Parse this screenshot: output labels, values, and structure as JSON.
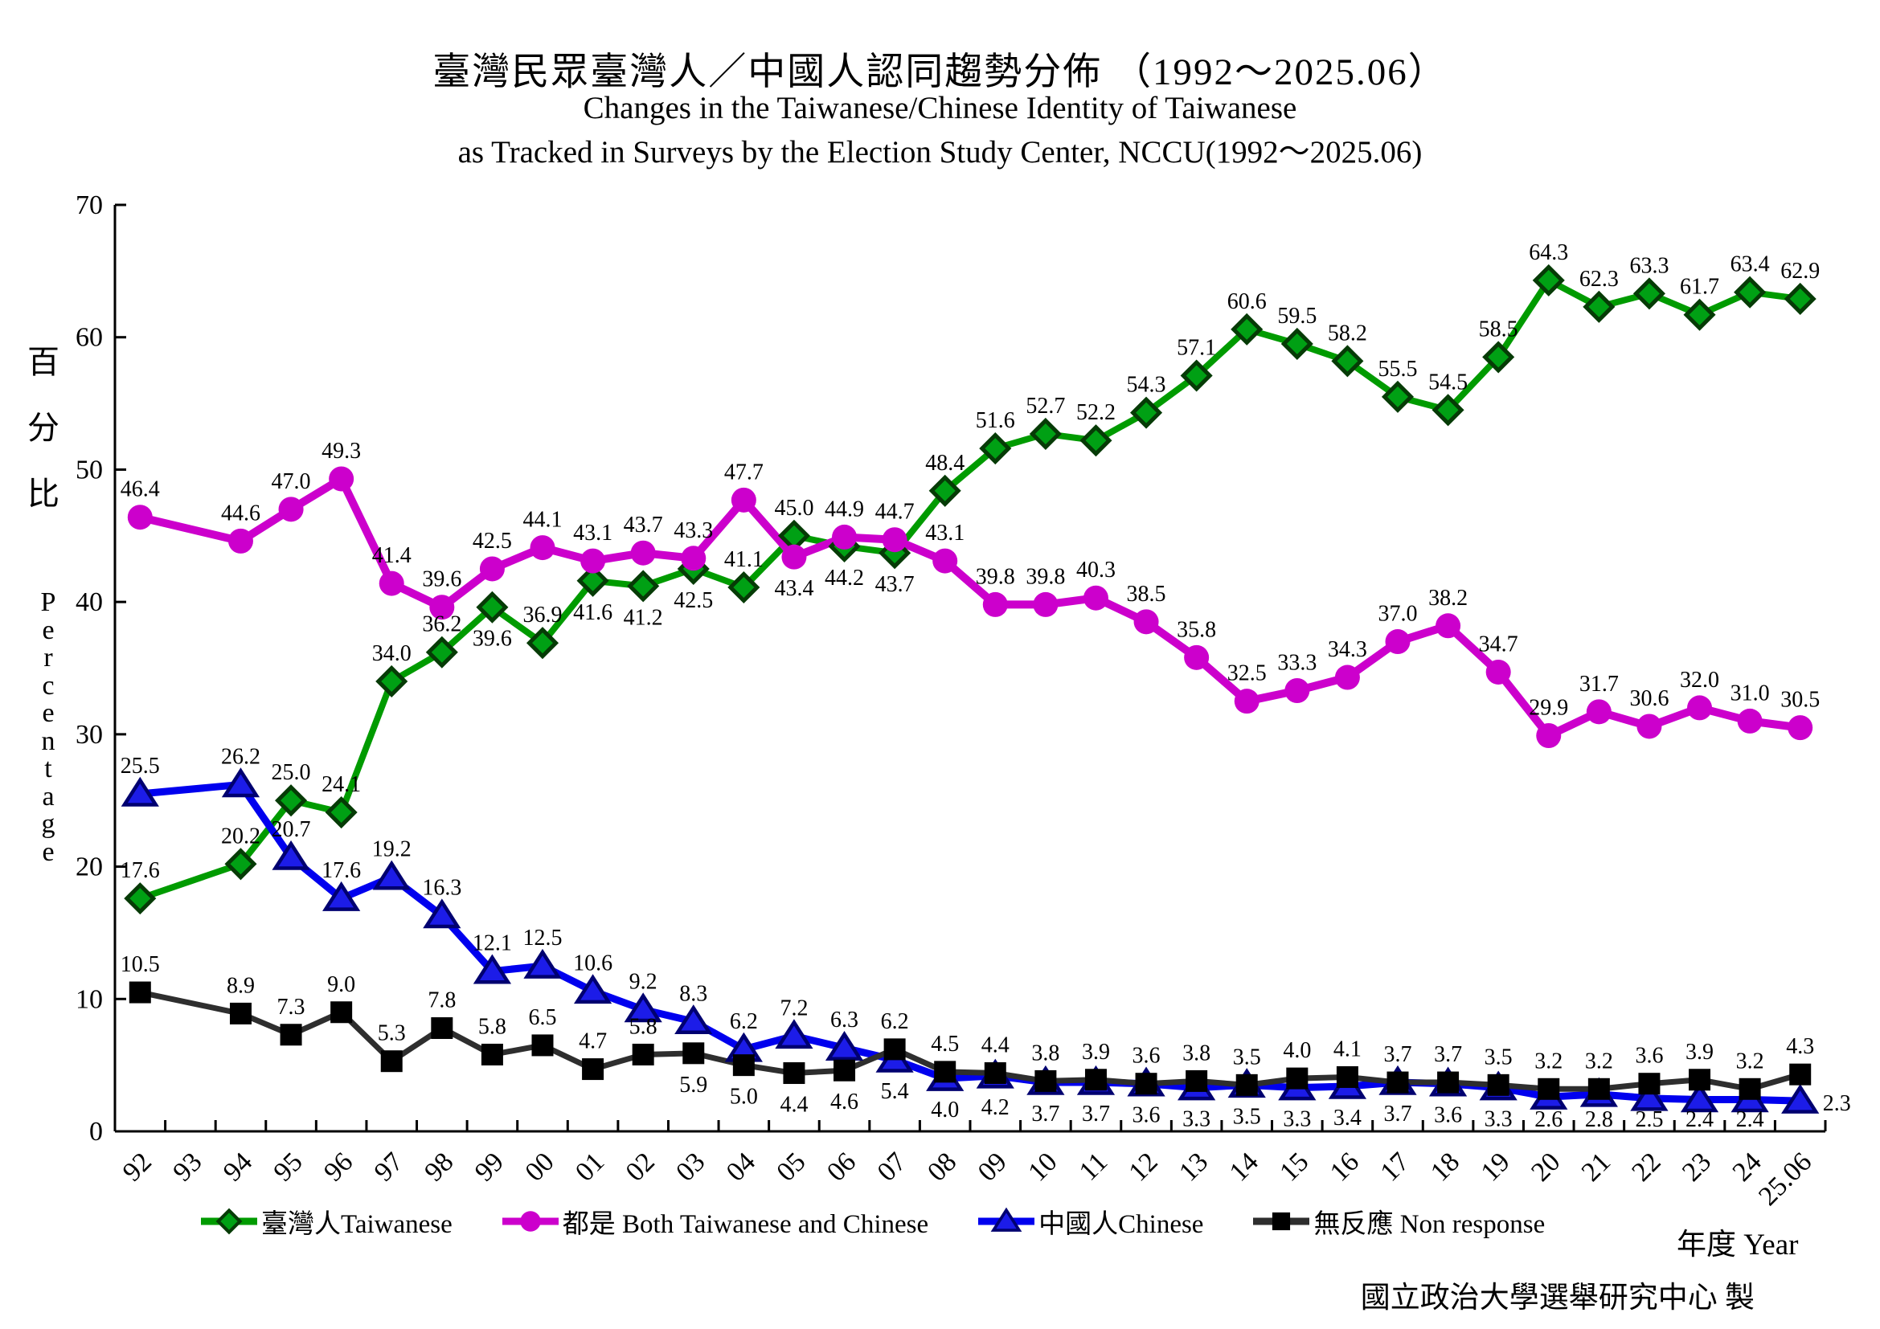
{
  "title_zh": "臺灣民眾臺灣人／中國人認同趨勢分佈 （1992～2025.06）",
  "subtitle_en_line1": "Changes in the Taiwanese/Chinese Identity of Taiwanese",
  "subtitle_en_line2": "as Tracked in Surveys by the Election Study Center, NCCU(1992～2025.06)",
  "y_axis": {
    "label_zh": "百分比",
    "label_en": "Percentage"
  },
  "x_axis_label": "年度 Year",
  "source": "國立政治大學選舉研究中心 製",
  "chart_data": {
    "type": "line",
    "title": "臺灣民眾臺灣人／中國人認同趨勢分佈 （1992～2025.06）",
    "xlabel": "年度 Year",
    "ylabel": "百分比 Percentage",
    "ylim": [
      0,
      70
    ],
    "y_ticks": [
      0,
      10,
      20,
      30,
      40,
      50,
      60,
      70
    ],
    "grid": false,
    "legend_position": "bottom",
    "categories": [
      "92",
      "93",
      "94",
      "95",
      "96",
      "97",
      "98",
      "99",
      "00",
      "01",
      "02",
      "03",
      "04",
      "05",
      "06",
      "07",
      "08",
      "09",
      "10",
      "11",
      "12",
      "13",
      "14",
      "15",
      "16",
      "17",
      "18",
      "19",
      "20",
      "21",
      "22",
      "23",
      "24",
      "25.06"
    ],
    "series": [
      {
        "name": "臺灣人Taiwanese",
        "marker": "diamond",
        "color": "#009B00",
        "marker_fill": "#00A014",
        "marker_border": "#063B06",
        "values": [
          17.6,
          null,
          20.2,
          25.0,
          24.1,
          34.0,
          36.2,
          39.6,
          36.9,
          41.6,
          41.2,
          42.5,
          41.1,
          45.0,
          44.2,
          43.7,
          48.4,
          51.6,
          52.7,
          52.2,
          54.3,
          57.1,
          60.6,
          59.5,
          58.2,
          55.5,
          54.5,
          58.5,
          64.3,
          62.3,
          63.3,
          61.7,
          63.4,
          62.9
        ]
      },
      {
        "name": "都是 Both Taiwanese and Chinese",
        "marker": "circle",
        "color": "#CC00CC",
        "marker_fill": "#CC00CC",
        "marker_border": "#CC00CC",
        "values": [
          46.4,
          null,
          44.6,
          47.0,
          49.3,
          41.4,
          39.6,
          42.5,
          44.1,
          43.1,
          43.7,
          43.3,
          47.7,
          43.4,
          44.9,
          44.7,
          43.1,
          39.8,
          39.8,
          40.3,
          38.5,
          35.8,
          32.5,
          33.3,
          34.3,
          37.0,
          38.2,
          34.7,
          29.9,
          31.7,
          30.6,
          32.0,
          31.0,
          30.5
        ]
      },
      {
        "name": "中國人Chinese",
        "marker": "triangle",
        "color": "#0000EE",
        "marker_fill": "#1C1CE8",
        "marker_border": "#000070",
        "values": [
          25.5,
          null,
          26.2,
          20.7,
          17.6,
          19.2,
          16.3,
          12.1,
          12.5,
          10.6,
          9.2,
          8.3,
          6.2,
          7.2,
          6.3,
          5.4,
          4.0,
          4.2,
          3.7,
          3.7,
          3.6,
          3.3,
          3.5,
          3.3,
          3.4,
          3.7,
          3.6,
          3.3,
          2.6,
          2.8,
          2.5,
          2.4,
          2.4,
          2.3
        ]
      },
      {
        "name": "無反應 Non response",
        "marker": "square",
        "color": "#2E2E2E",
        "marker_fill": "#000000",
        "marker_border": "#000000",
        "values": [
          10.5,
          null,
          8.9,
          7.3,
          9.0,
          5.3,
          7.8,
          5.8,
          6.5,
          4.7,
          5.8,
          5.9,
          5.0,
          4.4,
          4.6,
          6.2,
          4.5,
          4.4,
          3.8,
          3.9,
          3.6,
          3.8,
          3.5,
          4.0,
          4.1,
          3.7,
          3.7,
          3.5,
          3.2,
          3.2,
          3.6,
          3.9,
          3.2,
          4.3
        ]
      }
    ]
  }
}
